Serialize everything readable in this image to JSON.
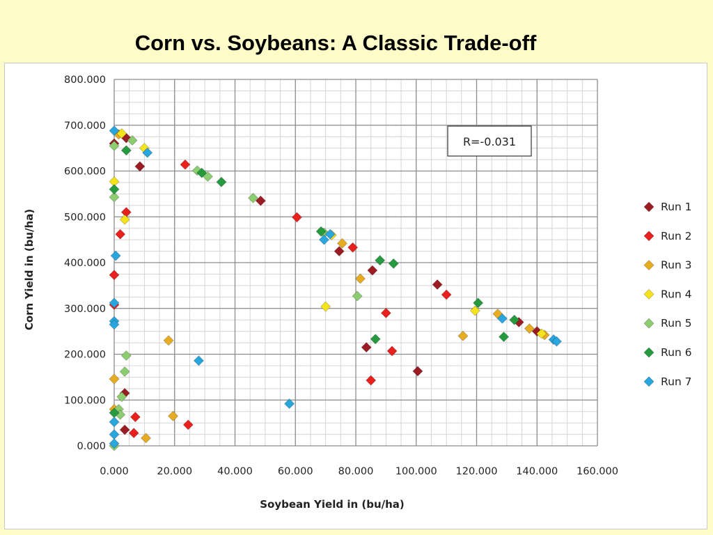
{
  "slide": {
    "title": "Corn vs. Soybeans: A Classic Trade-off"
  },
  "chart_data": {
    "type": "scatter",
    "title": "",
    "xlabel": "Soybean Yield in (bu/ha)",
    "ylabel": "Corn Yield in (bu/ha)",
    "xlim": [
      0,
      160
    ],
    "ylim": [
      0,
      800
    ],
    "x_ticks": [
      "0.000",
      "20.000",
      "40.000",
      "60.000",
      "80.000",
      "100.000",
      "120.000",
      "140.000",
      "160.000"
    ],
    "y_ticks": [
      "0.000",
      "100.000",
      "200.000",
      "300.000",
      "400.000",
      "500.000",
      "600.000",
      "700.000",
      "800.000"
    ],
    "grid": true,
    "legend_position": "right",
    "annotation": "R=-0.031",
    "series": [
      {
        "name": "Run 1",
        "color": "#9b1c22",
        "points": [
          [
            0,
            660
          ],
          [
            4,
            672
          ],
          [
            8.5,
            610
          ],
          [
            48.5,
            535
          ],
          [
            74.5,
            425
          ],
          [
            85.5,
            383
          ],
          [
            83.5,
            215
          ],
          [
            107,
            352
          ],
          [
            100.5,
            163
          ],
          [
            3.5,
            115
          ],
          [
            3.5,
            35
          ],
          [
            134,
            270
          ],
          [
            140,
            250
          ]
        ]
      },
      {
        "name": "Run 2",
        "color": "#e8201e",
        "points": [
          [
            23.5,
            614
          ],
          [
            4,
            510
          ],
          [
            60.5,
            499
          ],
          [
            2,
            462
          ],
          [
            79,
            433
          ],
          [
            0,
            373
          ],
          [
            0,
            308
          ],
          [
            90,
            290
          ],
          [
            110,
            330
          ],
          [
            92,
            207
          ],
          [
            85,
            143
          ],
          [
            7,
            63
          ],
          [
            24.5,
            46
          ],
          [
            6.5,
            28
          ]
        ]
      },
      {
        "name": "Run 3",
        "color": "#e8ac22",
        "points": [
          [
            1.5,
            680
          ],
          [
            75.5,
            442
          ],
          [
            81.5,
            365
          ],
          [
            18,
            230
          ],
          [
            0,
            146
          ],
          [
            19.5,
            65
          ],
          [
            10.5,
            17
          ],
          [
            115.5,
            240
          ],
          [
            127,
            288
          ],
          [
            137.5,
            256
          ],
          [
            142.5,
            242
          ],
          [
            0,
            80
          ]
        ]
      },
      {
        "name": "Run 4",
        "color": "#f5e41c",
        "points": [
          [
            2.5,
            682
          ],
          [
            10,
            650
          ],
          [
            0,
            577
          ],
          [
            3.5,
            494
          ],
          [
            70,
            304
          ],
          [
            119.5,
            295
          ],
          [
            141.5,
            245
          ],
          [
            72,
            460
          ]
        ]
      },
      {
        "name": "Run 5",
        "color": "#8ccd70",
        "points": [
          [
            6,
            667
          ],
          [
            0,
            655
          ],
          [
            0,
            543
          ],
          [
            27.5,
            601
          ],
          [
            31,
            588
          ],
          [
            46,
            541
          ],
          [
            80.5,
            327
          ],
          [
            4,
            197
          ],
          [
            3.5,
            162
          ],
          [
            2.5,
            107
          ],
          [
            1.5,
            80
          ],
          [
            2,
            68
          ],
          [
            0,
            0
          ],
          [
            69.5,
            465
          ]
        ]
      },
      {
        "name": "Run 6",
        "color": "#259a3f",
        "points": [
          [
            4,
            645
          ],
          [
            29,
            596
          ],
          [
            35.5,
            576
          ],
          [
            0,
            560
          ],
          [
            88,
            405
          ],
          [
            92.5,
            398
          ],
          [
            120.5,
            312
          ],
          [
            86.5,
            233
          ],
          [
            129,
            238
          ],
          [
            132.5,
            275
          ],
          [
            0,
            72
          ],
          [
            68.5,
            468
          ]
        ]
      },
      {
        "name": "Run 7",
        "color": "#2aa6de",
        "points": [
          [
            0,
            688
          ],
          [
            11,
            640
          ],
          [
            0.5,
            415
          ],
          [
            0,
            312
          ],
          [
            0,
            272
          ],
          [
            0,
            265
          ],
          [
            28,
            186
          ],
          [
            58,
            92
          ],
          [
            128.5,
            278
          ],
          [
            145.5,
            232
          ],
          [
            146.5,
            228
          ],
          [
            0,
            52
          ],
          [
            0,
            25
          ],
          [
            0,
            5
          ],
          [
            69.5,
            450
          ],
          [
            71.5,
            462
          ]
        ]
      }
    ]
  }
}
